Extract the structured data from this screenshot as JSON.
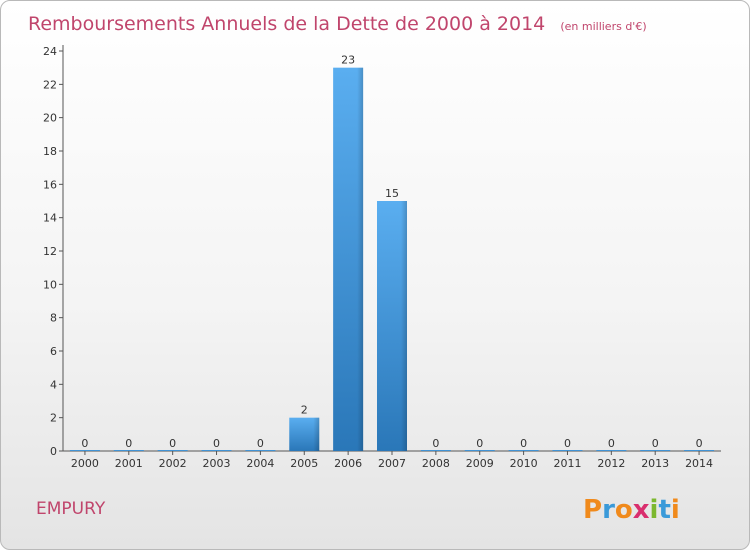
{
  "chart_data": {
    "type": "bar",
    "title": "Remboursements Annuels de la Dette de 2000 à 2014",
    "subtitle": "(en milliers d'€)",
    "categories": [
      "2000",
      "2001",
      "2002",
      "2003",
      "2004",
      "2005",
      "2006",
      "2007",
      "2008",
      "2009",
      "2010",
      "2011",
      "2012",
      "2013",
      "2014"
    ],
    "values": [
      0,
      0,
      0,
      0,
      0,
      2,
      23,
      15,
      0,
      0,
      0,
      0,
      0,
      0,
      0
    ],
    "yticks": [
      0,
      2,
      4,
      6,
      8,
      10,
      12,
      14,
      16,
      18,
      20,
      22,
      24
    ],
    "ylim": [
      0,
      24
    ],
    "xlabel": "",
    "ylabel": "",
    "grid": false,
    "legend": "none"
  },
  "commune": "EMPURY",
  "logo": {
    "text": "Proxiti",
    "letters": [
      "P",
      "r",
      "o",
      "x",
      "i",
      "t",
      "i"
    ],
    "colors": [
      "#f08a1c",
      "#3a9ad9",
      "#f08a1c",
      "#d92f6e",
      "#7cb82f",
      "#3a9ad9",
      "#f08a1c"
    ]
  },
  "colors": {
    "title": "#c0456c",
    "bar_top": "#5aaef0",
    "bar_bottom": "#2a77b8",
    "axis": "#555555"
  }
}
